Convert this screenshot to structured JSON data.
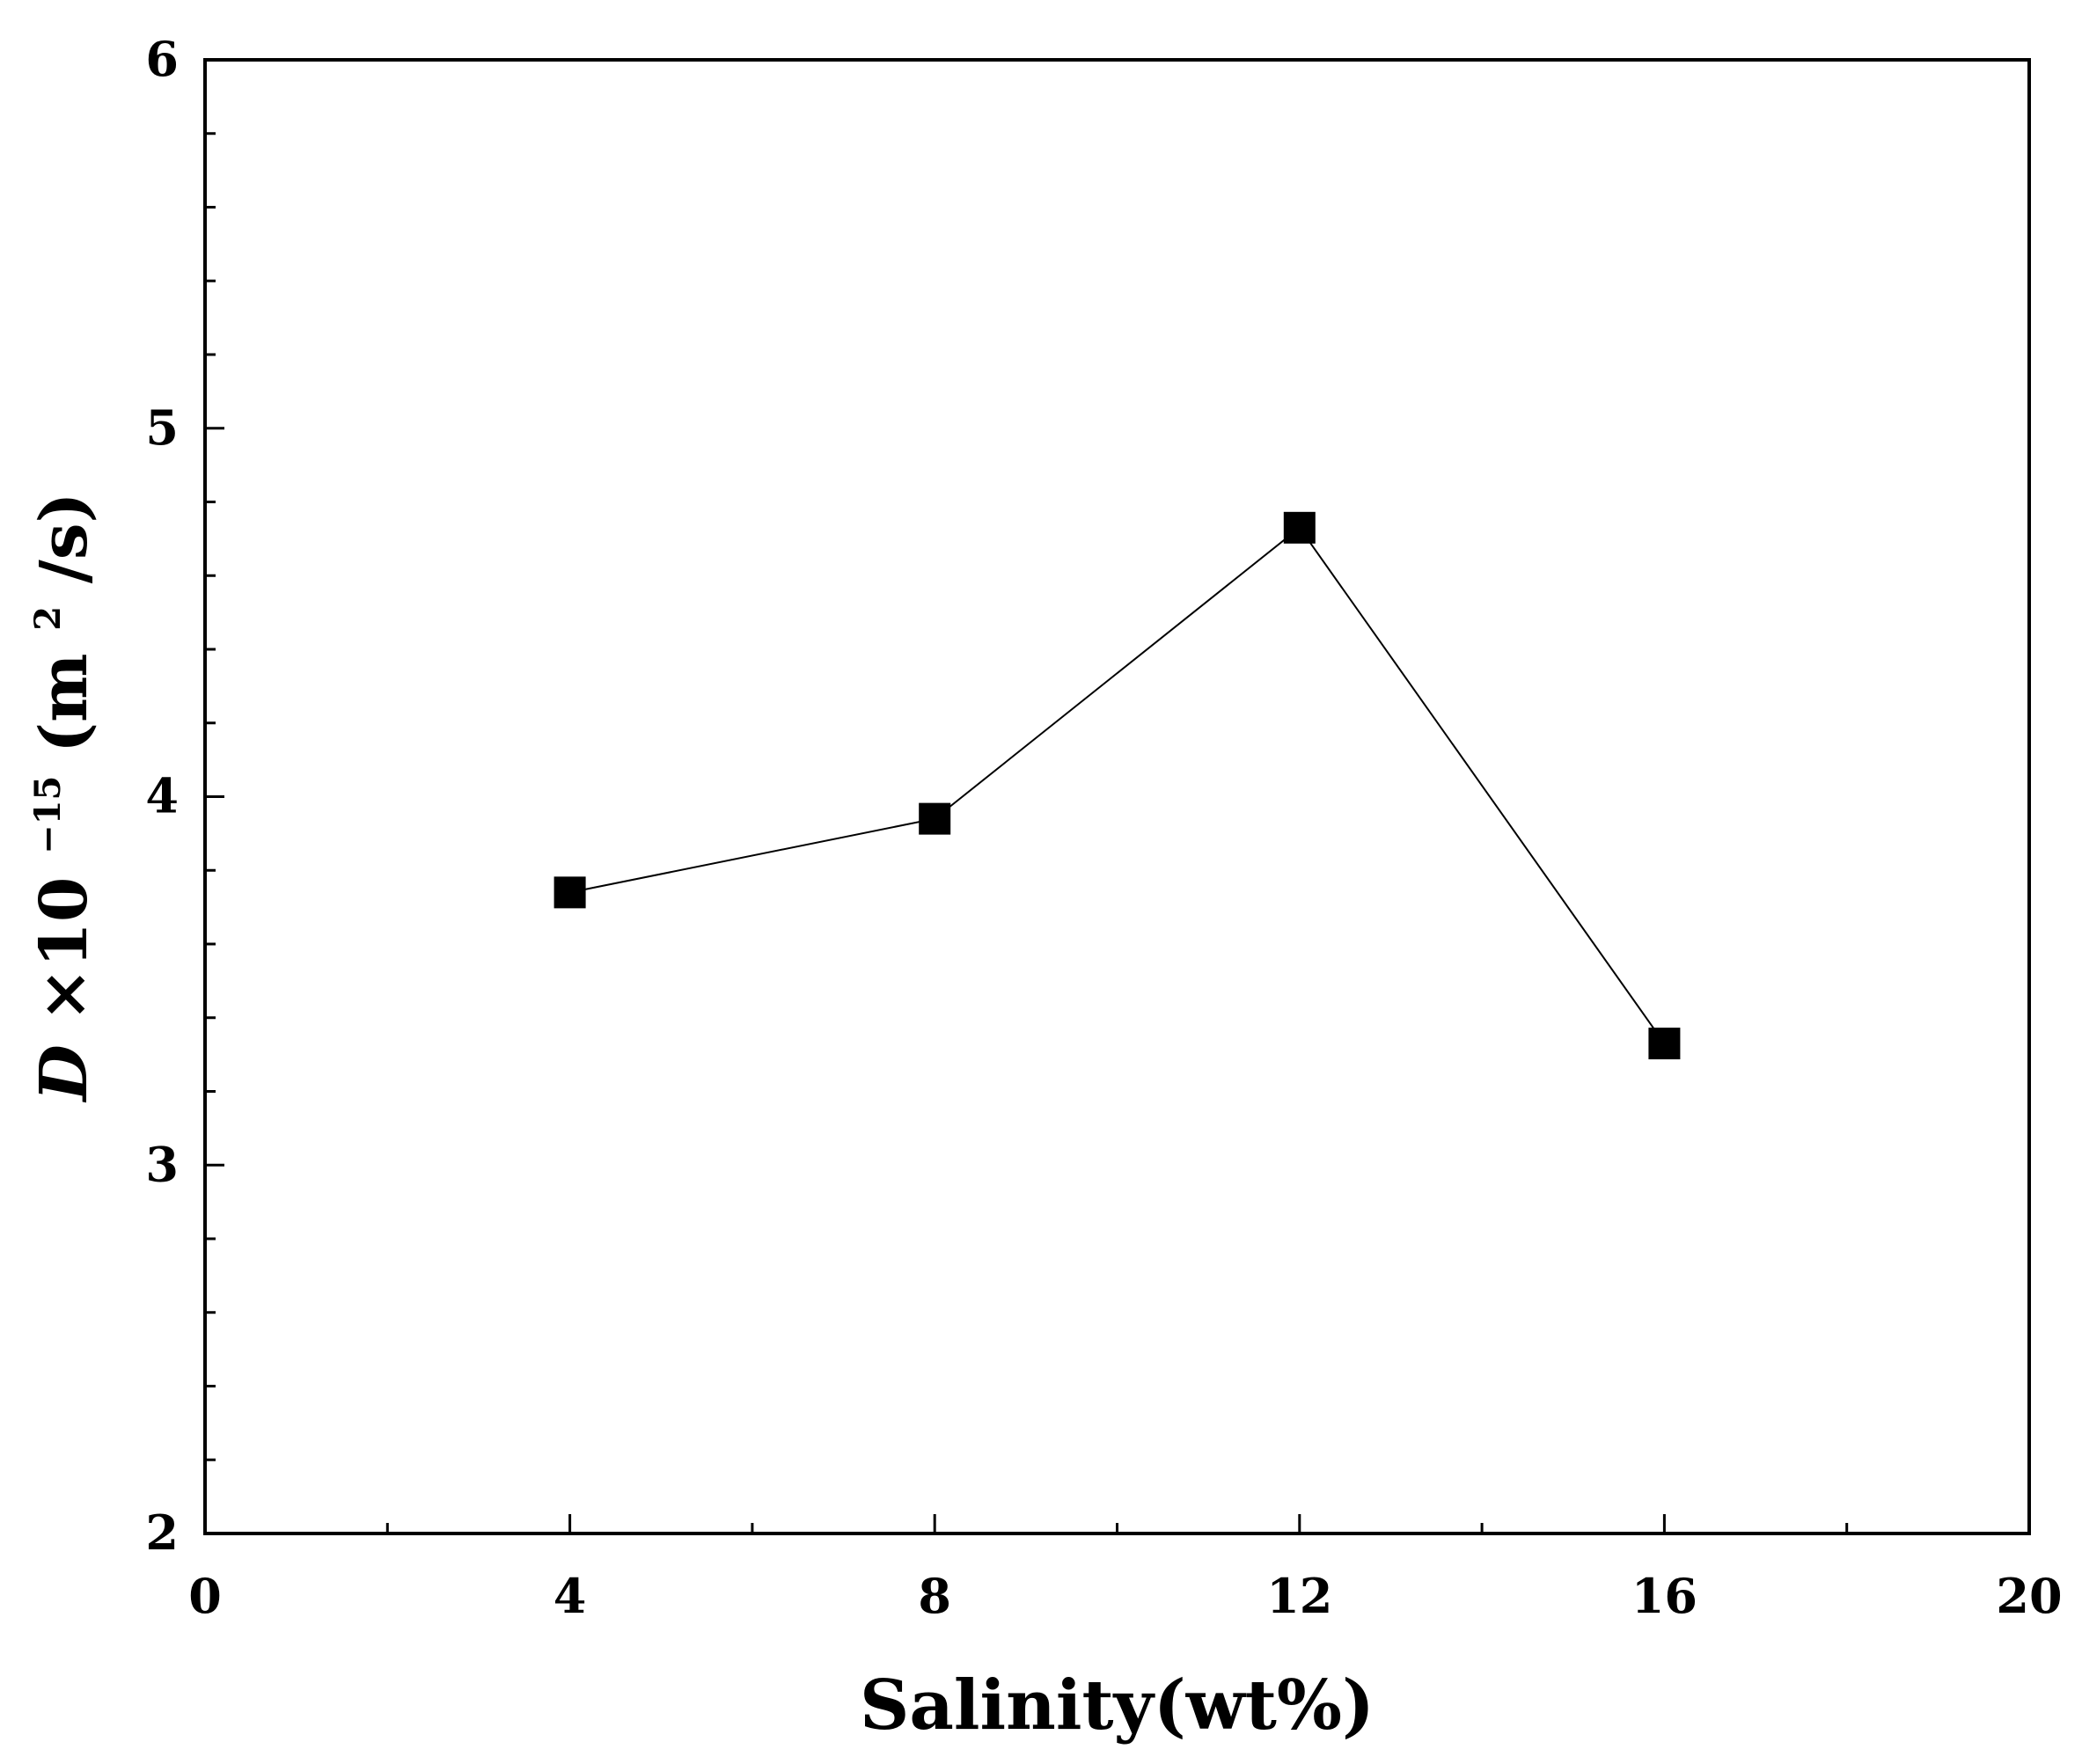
{
  "chart_data": {
    "type": "line",
    "title": "",
    "xlabel": "Salinity(wt%)",
    "ylabel": {
      "symbol": "D",
      "times": "×10",
      "exponent": "−15",
      "unit_open": "(m",
      "unit_exp": "2",
      "unit_close": "/s)"
    },
    "xlim": [
      0,
      20
    ],
    "ylim": [
      2,
      6
    ],
    "x_ticks": [
      0,
      4,
      8,
      12,
      16,
      20
    ],
    "y_ticks": [
      2,
      3,
      4,
      5,
      6
    ],
    "x_ticks_text": [
      "0",
      "4",
      "8",
      "12",
      "16",
      "20"
    ],
    "y_ticks_text": [
      "2",
      "3",
      "4",
      "5",
      "6"
    ],
    "x_minor_step": 2,
    "y_minor_step": 0.2,
    "grid": false,
    "legend": "none",
    "marker": "filled-square",
    "line_color": "#000000",
    "marker_color": "#000000",
    "series": [
      {
        "x": [
          4,
          8,
          12,
          16
        ],
        "values": [
          3.74,
          3.94,
          4.73,
          3.33
        ]
      }
    ]
  }
}
